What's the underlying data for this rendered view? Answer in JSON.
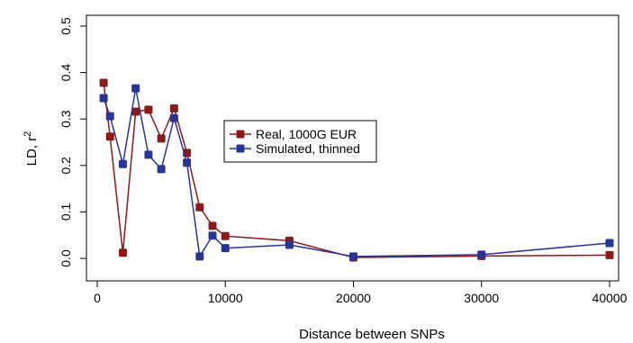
{
  "chart_data": {
    "type": "line",
    "title": "",
    "xlabel": "Distance between SNPs",
    "ylabel_main": "LD, r",
    "ylabel_sup": "2",
    "xlim": [
      0,
      40000
    ],
    "ylim": [
      0,
      0.5
    ],
    "xticks": [
      {
        "value": 0,
        "label": "0"
      },
      {
        "value": 10000,
        "label": "10000"
      },
      {
        "value": 20000,
        "label": "20000"
      },
      {
        "value": 30000,
        "label": "30000"
      },
      {
        "value": 40000,
        "label": "40000"
      }
    ],
    "yticks": [
      {
        "value": 0.0,
        "label": "0.0"
      },
      {
        "value": 0.1,
        "label": "0.1"
      },
      {
        "value": 0.2,
        "label": "0.2"
      },
      {
        "value": 0.3,
        "label": "0.3"
      },
      {
        "value": 0.4,
        "label": "0.4"
      },
      {
        "value": 0.5,
        "label": "0.5"
      }
    ],
    "legend_position": "center",
    "series": [
      {
        "name": "Real, 1000G EUR",
        "color": "#8b1a1a",
        "x": [
          500,
          1000,
          2000,
          3000,
          4000,
          5000,
          6000,
          7000,
          8000,
          9000,
          10000,
          15000,
          20000,
          30000,
          40000
        ],
        "y": [
          0.378,
          0.262,
          0.012,
          0.316,
          0.32,
          0.258,
          0.323,
          0.227,
          0.11,
          0.07,
          0.048,
          0.038,
          0.002,
          0.005,
          0.007
        ]
      },
      {
        "name": "Simulated, thinned",
        "color": "#283593",
        "x": [
          500,
          1000,
          2000,
          3000,
          4000,
          5000,
          6000,
          7000,
          8000,
          9000,
          10000,
          15000,
          20000,
          30000,
          40000
        ],
        "y": [
          0.345,
          0.306,
          0.203,
          0.366,
          0.223,
          0.192,
          0.302,
          0.206,
          0.004,
          0.049,
          0.022,
          0.029,
          0.004,
          0.008,
          0.033
        ]
      }
    ]
  }
}
